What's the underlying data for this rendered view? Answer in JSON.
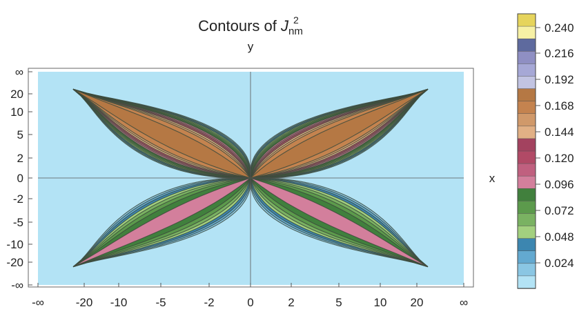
{
  "chart_data": {
    "type": "contour",
    "title_prefix": "Contours of ",
    "title_symbol": "J",
    "title_superscript": "2",
    "title_subscript": "nm",
    "xlabel": "x",
    "ylabel": "y",
    "x_ticks": [
      "-∞",
      "-20",
      "-10",
      "-5",
      "-2",
      "0",
      "2",
      "5",
      "10",
      "20",
      "∞"
    ],
    "y_ticks": [
      "∞",
      "20",
      "10",
      "5",
      "2",
      "0",
      "-2",
      "-5",
      "-10",
      "-20",
      "-∞"
    ],
    "legend_labels": [
      "0.240",
      "0.216",
      "0.192",
      "0.168",
      "0.144",
      "0.120",
      "0.096",
      "0.072",
      "0.048",
      "0.024"
    ],
    "legend_levels": [
      0.0,
      0.008,
      0.016,
      0.024,
      0.032,
      0.04,
      0.048,
      0.056,
      0.064,
      0.072,
      0.08,
      0.088,
      0.096,
      0.104,
      0.112,
      0.12,
      0.128,
      0.136,
      0.144,
      0.152,
      0.16,
      0.168,
      0.176,
      0.184,
      0.192,
      0.2,
      0.208,
      0.216,
      0.224,
      0.232,
      0.24,
      0.248
    ],
    "legend_colors": [
      "#b3e3f5",
      "#8ac6e3",
      "#63a9d0",
      "#3c86b0",
      "#a3d07f",
      "#7ab262",
      "#5c9a4c",
      "#41803d",
      "#d37f9c",
      "#c0607f",
      "#b14a66",
      "#a3425f",
      "#e1b085",
      "#d0996a",
      "#c4834f",
      "#b57844",
      "#c2c4e2",
      "#a6a8d6",
      "#8f8fc3",
      "#5e6a9e",
      "#f7f1a5",
      "#e6d45c"
    ],
    "contour_bands": [
      {
        "level": 0.008,
        "color": "#8ac6e3"
      },
      {
        "level": 0.016,
        "color": "#63a9d0"
      },
      {
        "level": 0.024,
        "color": "#3c86b0"
      },
      {
        "level": 0.032,
        "color": "#a3d07f"
      },
      {
        "level": 0.04,
        "color": "#7ab262"
      },
      {
        "level": 0.048,
        "color": "#5c9a4c"
      },
      {
        "level": 0.056,
        "color": "#41803d"
      },
      {
        "level": 0.064,
        "color": "#d37f9c"
      },
      {
        "level": 0.072,
        "color": "#c0607f"
      },
      {
        "level": 0.08,
        "color": "#b14a66"
      },
      {
        "level": 0.088,
        "color": "#e1b085"
      },
      {
        "level": 0.096,
        "color": "#d0996a"
      },
      {
        "level": 0.104,
        "color": "#c4834f"
      },
      {
        "level": 0.12,
        "color": "#b57844"
      },
      {
        "level": 0.15,
        "color": "#c2c4e2"
      },
      {
        "level": 0.18,
        "color": "#a6a8d6"
      },
      {
        "level": 0.21,
        "color": "#8f8fc3"
      },
      {
        "level": 0.24,
        "color": "#5e6a9e"
      },
      {
        "level": 0.244,
        "color": "#f7f1a5"
      },
      {
        "level": 0.248,
        "color": "#e6d45c"
      }
    ],
    "background_color": "#b3e3f5",
    "grid": false
  }
}
